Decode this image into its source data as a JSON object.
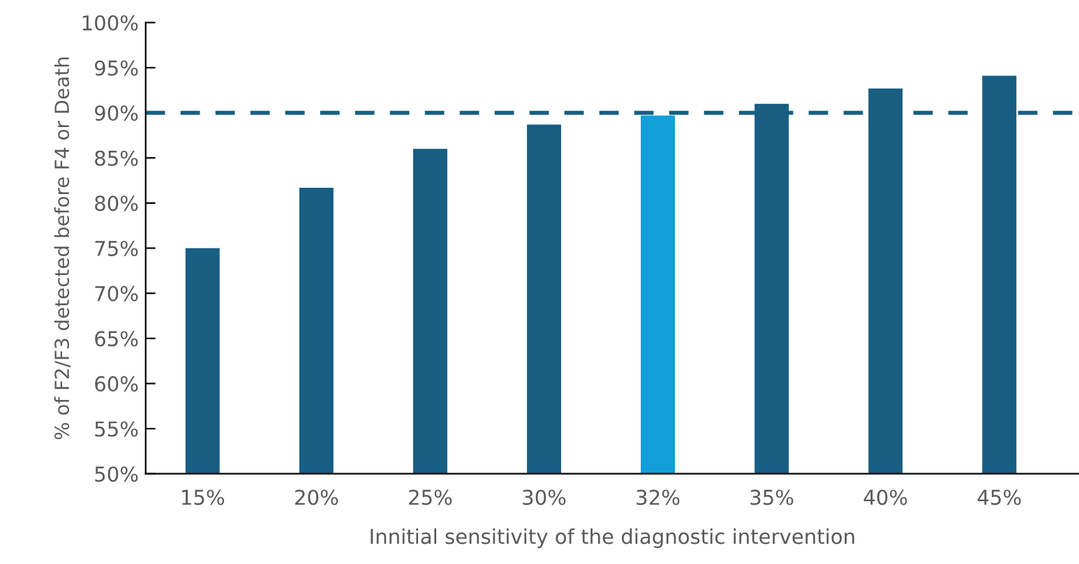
{
  "chart_data": {
    "type": "bar",
    "xlabel": "Innitial sensitivity of the diagnostic intervention",
    "ylabel": "% of F2/F3 detected before F4 or Death",
    "categories": [
      "15%",
      "20%",
      "25%",
      "30%",
      "32%",
      "35%",
      "40%",
      "45%"
    ],
    "values": [
      75.0,
      81.7,
      86.0,
      88.7,
      89.7,
      91.0,
      92.7,
      94.1
    ],
    "colors": [
      "#175e82",
      "#175e82",
      "#175e82",
      "#175e82",
      "#129fd7",
      "#175e82",
      "#175e82",
      "#175e82"
    ],
    "ylim": [
      50,
      100
    ],
    "yticks": [
      {
        "value": 50,
        "label": "50%"
      },
      {
        "value": 55,
        "label": "55%"
      },
      {
        "value": 60,
        "label": "60%"
      },
      {
        "value": 65,
        "label": "65%"
      },
      {
        "value": 70,
        "label": "70%"
      },
      {
        "value": 75,
        "label": "75%"
      },
      {
        "value": 80,
        "label": "80%"
      },
      {
        "value": 85,
        "label": "85%"
      },
      {
        "value": 90,
        "label": "90%"
      },
      {
        "value": 95,
        "label": "95%"
      },
      {
        "value": 100,
        "label": "100%"
      }
    ],
    "ref_lines": [
      {
        "axis": "y",
        "value": 90,
        "color": "#175e82",
        "line_style": "dashed"
      }
    ],
    "grid": false,
    "legend": false
  }
}
